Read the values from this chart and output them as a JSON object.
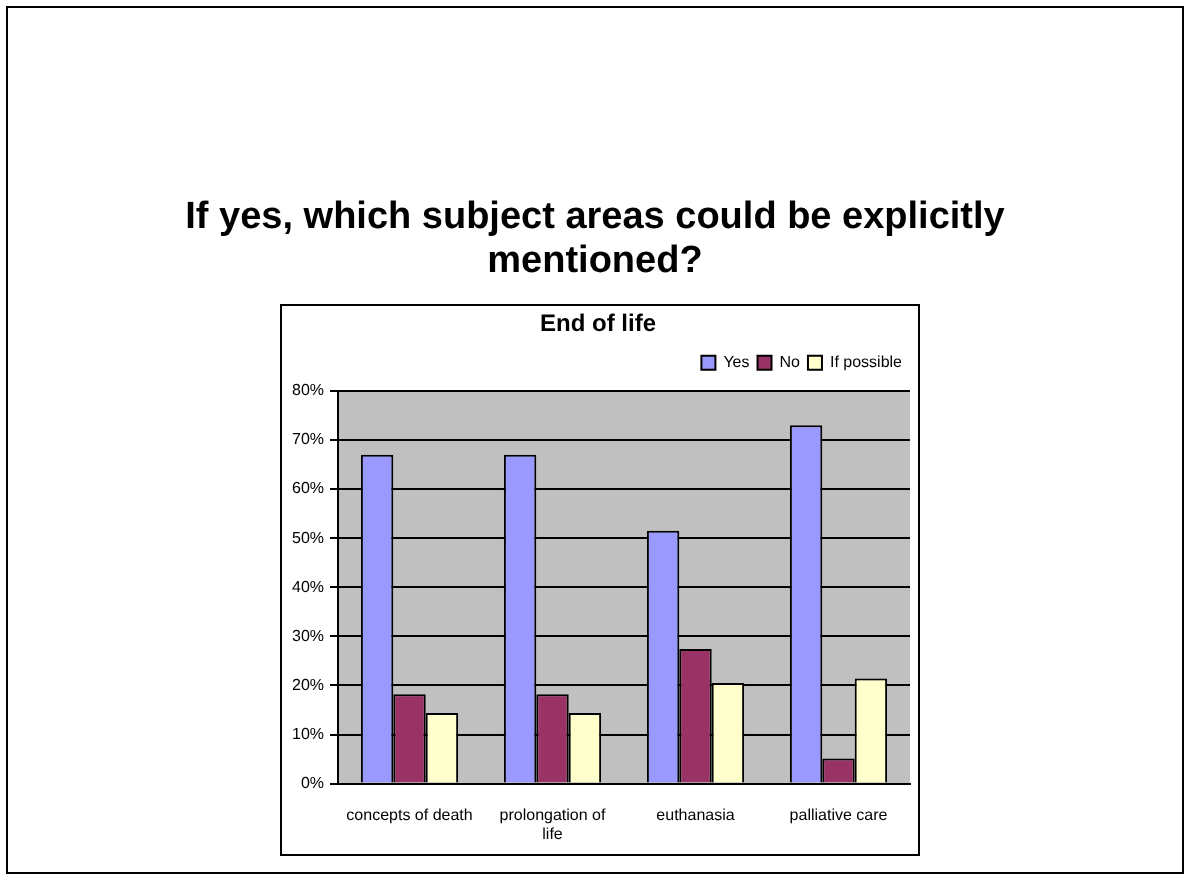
{
  "chart_data": {
    "type": "bar",
    "title": "If yes, which subject areas could be explicitly mentioned?",
    "subtitle": "End of life",
    "categories": [
      "concepts of death",
      "prolongation of life",
      "euthanasia",
      "palliative care"
    ],
    "series": [
      {
        "name": "Yes",
        "color": "#9999ff",
        "values": [
          67,
          67,
          51.5,
          73
        ]
      },
      {
        "name": "No",
        "color": "#993366",
        "values": [
          18.2,
          18.2,
          27.4,
          5.1
        ]
      },
      {
        "name": "If possible",
        "color": "#ffffcc",
        "values": [
          14.4,
          14.4,
          20.5,
          21.4
        ]
      }
    ],
    "ylim": [
      0,
      80
    ],
    "yticks": [
      {
        "value": 0,
        "label": "0%"
      },
      {
        "value": 10,
        "label": "10%"
      },
      {
        "value": 20,
        "label": "20%"
      },
      {
        "value": 30,
        "label": "30%"
      },
      {
        "value": 40,
        "label": "40%"
      },
      {
        "value": 50,
        "label": "50%"
      },
      {
        "value": 60,
        "label": "60%"
      },
      {
        "value": 70,
        "label": "70%"
      },
      {
        "value": 80,
        "label": "80%"
      }
    ],
    "grid": "y",
    "legend": "top right"
  }
}
